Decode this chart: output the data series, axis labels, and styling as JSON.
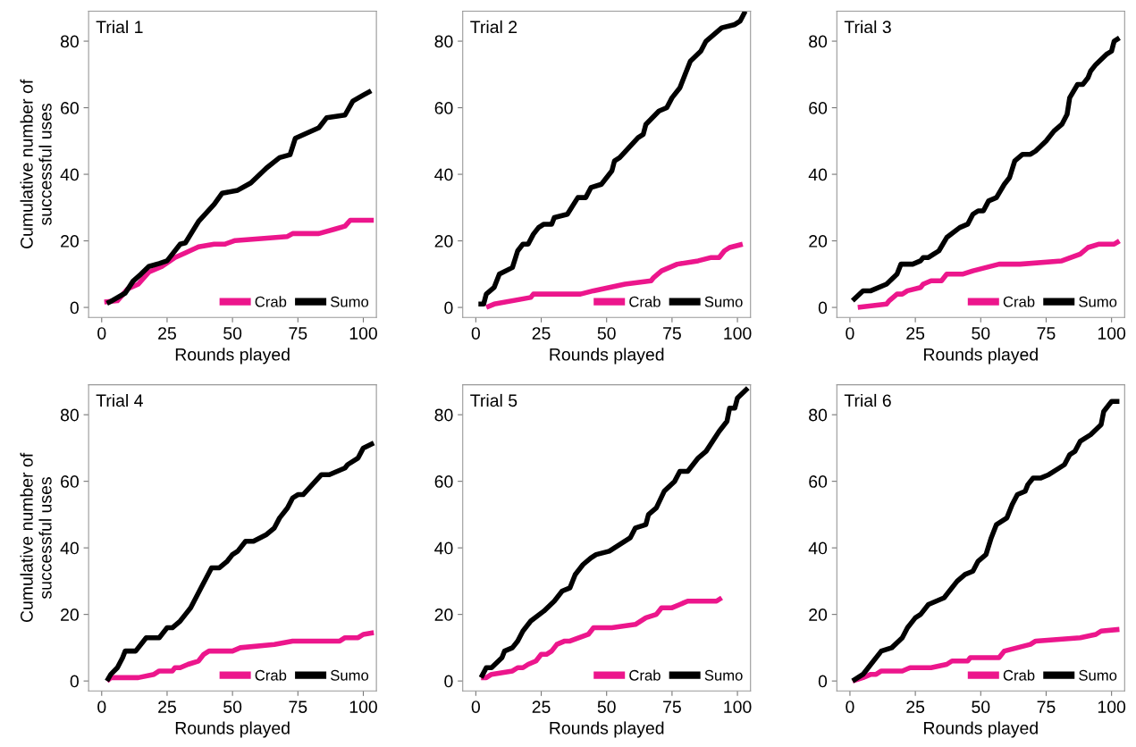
{
  "chart_data": [
    {
      "type": "line",
      "title": "Trial 1",
      "xlabel": "Rounds played",
      "ylabel": "Cumulative number of\nsuccessful uses",
      "xlim": [
        -5,
        105
      ],
      "ylim": [
        -3,
        89
      ],
      "xticks": [
        0,
        25,
        50,
        75,
        100
      ],
      "yticks": [
        0,
        20,
        40,
        60,
        80
      ],
      "legend": "bottom right",
      "series": [
        {
          "name": "Crab",
          "color": "#ec168c",
          "x": [
            1,
            6,
            10,
            14,
            18,
            23,
            28,
            32,
            37,
            43,
            47,
            51,
            71,
            73,
            83,
            89,
            93,
            95,
            104
          ],
          "values": [
            1.6,
            2,
            5.6,
            7,
            10.6,
            12.3,
            15,
            16.4,
            18.2,
            19,
            19,
            20.1,
            21.3,
            22.2,
            22.2,
            23.5,
            24.4,
            26.2,
            26.2
          ]
        },
        {
          "name": "Sumo",
          "color": "#000000",
          "x": [
            2,
            3,
            9,
            12,
            15,
            18,
            22,
            25,
            30,
            32,
            37,
            43,
            46,
            52,
            57,
            63,
            68,
            72,
            74,
            83,
            86,
            93,
            96,
            100,
            103
          ],
          "values": [
            1.2,
            1.6,
            4.3,
            7.9,
            10,
            12.3,
            13.2,
            14,
            19,
            19.4,
            25.8,
            31,
            34.3,
            35.2,
            37.4,
            41.9,
            45,
            45.9,
            50.8,
            54,
            57,
            57.8,
            62,
            63.8,
            65.1
          ]
        }
      ]
    },
    {
      "type": "line",
      "title": "Trial 2",
      "xlabel": "Rounds played",
      "xlim": [
        -5,
        105
      ],
      "ylim": [
        -3,
        89
      ],
      "xticks": [
        0,
        25,
        50,
        75,
        100
      ],
      "yticks": [
        0,
        20,
        40,
        60,
        80
      ],
      "legend": "bottom right",
      "series": [
        {
          "name": "Crab",
          "color": "#ec168c",
          "x": [
            4,
            7,
            21,
            22,
            40,
            45,
            51,
            57,
            67,
            68,
            71,
            77,
            85,
            90,
            93,
            95,
            97,
            102
          ],
          "values": [
            0,
            1,
            3,
            4,
            4,
            5,
            6,
            7,
            8,
            9,
            11,
            13,
            14,
            15,
            15,
            17,
            18,
            19
          ]
        },
        {
          "name": "Sumo",
          "color": "#000000",
          "x": [
            1,
            3,
            4,
            7,
            9,
            14,
            16,
            18,
            20,
            22,
            24,
            26,
            29,
            30,
            35,
            39,
            42,
            44,
            48,
            52,
            53,
            55,
            62,
            64,
            65,
            70,
            73,
            75,
            78,
            80,
            82,
            86,
            88,
            94,
            99,
            101,
            103
          ],
          "values": [
            1,
            1,
            4,
            6,
            10,
            12,
            17,
            19,
            19,
            22,
            24,
            25,
            25,
            27,
            28,
            33,
            33,
            36,
            37,
            41,
            44,
            45,
            51,
            52,
            55,
            59,
            60,
            63,
            66,
            70,
            74,
            77,
            80,
            84,
            85,
            86,
            89
          ]
        }
      ]
    },
    {
      "type": "line",
      "title": "Trial 3",
      "xlabel": "Rounds played",
      "xlim": [
        -5,
        105
      ],
      "ylim": [
        -3,
        89
      ],
      "xticks": [
        0,
        25,
        50,
        75,
        100
      ],
      "yticks": [
        0,
        20,
        40,
        60,
        80
      ],
      "legend": "bottom right",
      "series": [
        {
          "name": "Crab",
          "color": "#ec168c",
          "x": [
            3,
            14,
            15,
            18,
            20,
            22,
            27,
            28,
            31,
            35,
            37,
            43,
            47,
            57,
            65,
            81,
            88,
            91,
            95,
            101,
            103
          ],
          "values": [
            0,
            1,
            2,
            4,
            4,
            5,
            6,
            7,
            8,
            8,
            10,
            10,
            11,
            13,
            13,
            14,
            16,
            18,
            19,
            19,
            20
          ]
        },
        {
          "name": "Sumo",
          "color": "#000000",
          "x": [
            1,
            5,
            8,
            14,
            18,
            19.5,
            24,
            27,
            28,
            30,
            32,
            34,
            37,
            42,
            45,
            47,
            49,
            51,
            53,
            56,
            59,
            61,
            63,
            66,
            69,
            71,
            75,
            76,
            78,
            81,
            83,
            84,
            87,
            89,
            91,
            92,
            94,
            98,
            100,
            101,
            103
          ],
          "values": [
            2,
            5,
            5,
            7,
            10,
            13,
            13,
            14,
            15,
            15,
            16,
            17,
            21,
            24,
            25,
            28,
            29,
            29,
            32,
            33,
            37,
            39,
            44,
            46,
            46,
            47,
            50,
            51,
            53,
            55,
            58,
            63,
            67,
            67,
            69,
            71,
            73,
            76,
            77,
            80,
            81
          ]
        }
      ]
    },
    {
      "type": "line",
      "title": "Trial 4",
      "xlabel": "Rounds played",
      "ylabel": "Cumulative number of\nsuccessful uses",
      "xlim": [
        -5,
        105
      ],
      "ylim": [
        -3,
        89
      ],
      "xticks": [
        0,
        25,
        50,
        75,
        100
      ],
      "yticks": [
        0,
        20,
        40,
        60,
        80
      ],
      "legend": "bottom right",
      "series": [
        {
          "name": "Crab",
          "color": "#ec168c",
          "x": [
            2,
            3.5,
            14,
            20,
            22,
            27,
            28,
            30,
            33,
            37,
            39,
            41,
            50,
            53,
            66,
            73,
            91,
            93,
            98,
            100,
            104
          ],
          "values": [
            0,
            1,
            1,
            2,
            3,
            3,
            4,
            4,
            5,
            6,
            8,
            9,
            9,
            10,
            11,
            12,
            12,
            13,
            13,
            14,
            14.5
          ]
        },
        {
          "name": "Sumo",
          "color": "#000000",
          "x": [
            2,
            3.5,
            6,
            8,
            9,
            13,
            17,
            22,
            25,
            27,
            30,
            32,
            34,
            38,
            42,
            45,
            48,
            50,
            52,
            55,
            58,
            63,
            66,
            68,
            71,
            73,
            75,
            77,
            84,
            87,
            93,
            94,
            98,
            100,
            104
          ],
          "values": [
            0,
            2,
            4,
            7,
            9,
            9,
            13,
            13,
            16,
            16,
            18,
            20,
            22,
            28,
            34,
            34,
            36,
            38,
            39,
            42,
            42,
            44,
            46,
            49,
            52,
            55,
            56,
            56,
            62,
            62,
            64,
            65,
            67,
            70,
            71.5
          ]
        }
      ]
    },
    {
      "type": "line",
      "title": "Trial 5",
      "xlabel": "Rounds played",
      "xlim": [
        -5,
        105
      ],
      "ylim": [
        -3,
        89
      ],
      "xticks": [
        0,
        25,
        50,
        75,
        100
      ],
      "yticks": [
        0,
        20,
        40,
        60,
        80
      ],
      "legend": "bottom right",
      "series": [
        {
          "name": "Crab",
          "color": "#ec168c",
          "x": [
            2,
            4,
            6,
            14,
            16,
            18,
            20,
            23,
            25,
            27,
            29,
            31,
            34,
            36,
            43,
            45,
            52,
            61,
            65,
            69,
            71,
            75,
            78,
            81,
            92,
            94
          ],
          "values": [
            1,
            1,
            2,
            3,
            4,
            4,
            5,
            6,
            8,
            8,
            9,
            11,
            12,
            12,
            14,
            16,
            16,
            17,
            19,
            20,
            22,
            22,
            23,
            24,
            24,
            25
          ]
        },
        {
          "name": "Sumo",
          "color": "#000000",
          "x": [
            2,
            4,
            6,
            10,
            11,
            14,
            16,
            18,
            21,
            26,
            30,
            33,
            36,
            38,
            41,
            44,
            46,
            51,
            53,
            57,
            59,
            61,
            65,
            66,
            69,
            72,
            76,
            78,
            81,
            83,
            85,
            88,
            93,
            96,
            97,
            99,
            100,
            104
          ],
          "values": [
            1,
            4,
            4,
            7,
            9,
            10,
            12,
            15,
            18,
            21,
            24,
            27,
            28,
            32,
            35,
            37,
            38,
            39,
            40,
            42,
            43,
            46,
            47,
            50,
            52,
            57,
            60,
            63,
            63,
            65,
            67,
            69,
            75,
            78,
            82,
            82,
            85,
            88
          ]
        }
      ]
    },
    {
      "type": "line",
      "title": "Trial 6",
      "xlabel": "Rounds played",
      "xlim": [
        -5,
        105
      ],
      "ylim": [
        -3,
        89
      ],
      "xticks": [
        0,
        25,
        50,
        75,
        100
      ],
      "yticks": [
        0,
        20,
        40,
        60,
        80
      ],
      "legend": "bottom right",
      "series": [
        {
          "name": "Crab",
          "color": "#ec168c",
          "x": [
            1,
            5,
            8,
            10,
            12,
            20,
            23,
            31,
            37,
            39,
            45,
            46,
            57,
            59,
            69,
            71,
            88,
            94,
            96,
            103
          ],
          "values": [
            0,
            1,
            2,
            2,
            3,
            3,
            4,
            4,
            5,
            6,
            6,
            7,
            7,
            9,
            11,
            12,
            13,
            14,
            15,
            15.5
          ]
        },
        {
          "name": "Sumo",
          "color": "#000000",
          "x": [
            1,
            5,
            8,
            12,
            16,
            20,
            22,
            25,
            27,
            30,
            33,
            36,
            38,
            41,
            44,
            47,
            49,
            52,
            54,
            56,
            60,
            62,
            64,
            67,
            68,
            70,
            73,
            76,
            80,
            82,
            84,
            86,
            88,
            92,
            96,
            97,
            100,
            103
          ],
          "values": [
            0,
            2,
            5,
            9,
            10,
            13,
            16,
            19,
            20,
            23,
            24,
            25,
            27,
            30,
            32,
            33,
            36,
            38,
            43,
            47,
            49,
            53,
            56,
            57,
            59,
            61,
            61,
            62,
            64,
            65,
            68,
            69,
            72,
            74,
            77,
            81,
            84,
            84
          ]
        }
      ]
    }
  ]
}
